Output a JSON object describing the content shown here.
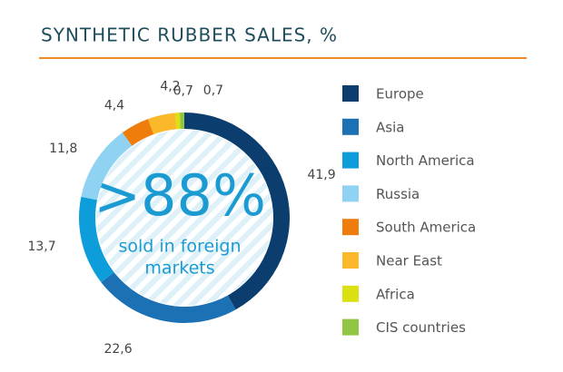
{
  "chart_data": {
    "type": "donut",
    "title": "SYNTHETIC RUBBER SALES, %",
    "categories": [
      "Europe",
      "Asia",
      "North America",
      "Russia",
      "South America",
      "Near East",
      "Africa",
      "CIS countries"
    ],
    "values": [
      41.9,
      22.6,
      13.7,
      11.8,
      4.4,
      4.2,
      0.7,
      0.7
    ],
    "value_labels": [
      "41,9",
      "22,6",
      "13,7",
      "11,8",
      "4,4",
      "4,2",
      "0,7",
      "0,7"
    ],
    "colors": [
      "#0b3e6e",
      "#1c70b4",
      "#0d9ddb",
      "#8fd2f2",
      "#ee7d0c",
      "#fbb92a",
      "#dbe011",
      "#90c641"
    ],
    "annotations": [
      ">88%",
      "sold in foreign",
      "markets"
    ]
  }
}
